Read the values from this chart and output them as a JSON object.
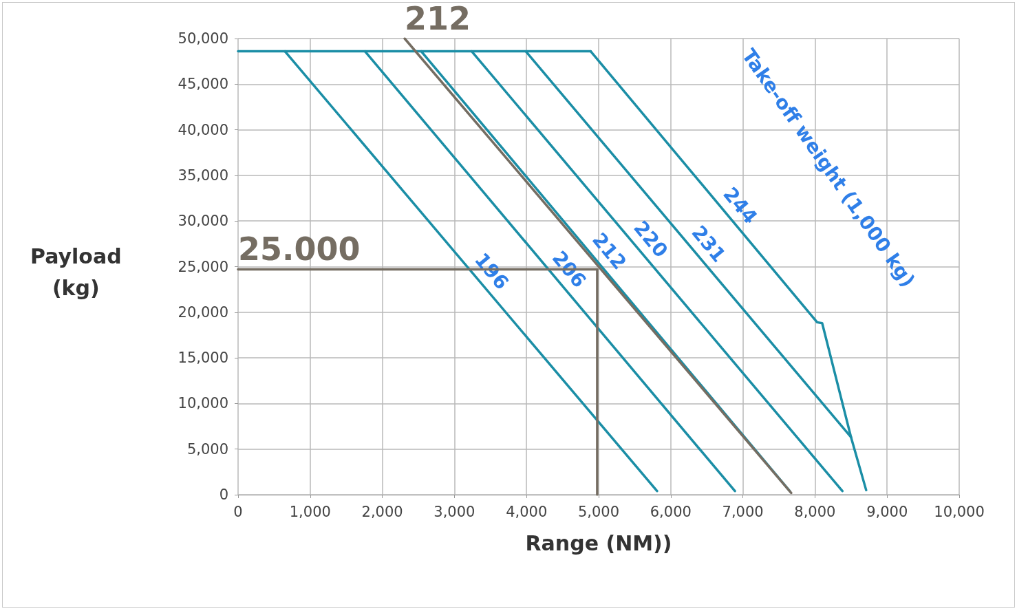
{
  "chart_data": {
    "type": "line",
    "xlabel": "Range (NM))",
    "ylabel": "Payload\n(kg)",
    "xlim": [
      0,
      10000
    ],
    "ylim": [
      0,
      50000
    ],
    "xticks": [
      0,
      {
        "value": 1000,
        "label": "1,000"
      },
      {
        "value": 2000,
        "label": "2,000"
      },
      {
        "value": 3000,
        "label": "3,000"
      },
      {
        "value": 4000,
        "label": "4,000"
      },
      {
        "value": 5000,
        "label": "5,000"
      },
      {
        "value": 6000,
        "label": "6,000"
      },
      {
        "value": 7000,
        "label": "7,000"
      },
      {
        "value": 8000,
        "label": "8,000"
      },
      {
        "value": 9000,
        "label": "9,000"
      },
      {
        "value": 10000,
        "label": "10,000"
      }
    ],
    "yticks": [
      0,
      {
        "value": 5000,
        "label": "5,000"
      },
      {
        "value": 10000,
        "label": "10,000"
      },
      {
        "value": 15000,
        "label": "15,000"
      },
      {
        "value": 20000,
        "label": "20,000"
      },
      {
        "value": 25000,
        "label": "25,000"
      },
      {
        "value": 30000,
        "label": "30,000"
      },
      {
        "value": 35000,
        "label": "35,000"
      },
      {
        "value": 40000,
        "label": "40,000"
      },
      {
        "value": 45000,
        "label": "45,000"
      },
      {
        "value": 50000,
        "label": "50,000"
      }
    ],
    "grid": true,
    "legend": false,
    "marker": "none",
    "line_style": "solid",
    "series": [
      {
        "color": "#1b8ea6",
        "x": [
          0,
          4890
        ],
        "values": [
          48600,
          48600
        ]
      },
      {
        "color": "#1b8ea6",
        "x": [
          650,
          5810
        ],
        "values": [
          48600,
          400
        ]
      },
      {
        "color": "#1b8ea6",
        "x": [
          1760,
          6890
        ],
        "values": [
          48600,
          400
        ]
      },
      {
        "color": "#1b8ea6",
        "x": [
          2540,
          7650
        ],
        "values": [
          48600,
          400
        ]
      },
      {
        "color": "#1b8ea6",
        "x": [
          3240,
          8380
        ],
        "values": [
          48600,
          400
        ]
      },
      {
        "color": "#1b8ea6",
        "x": [
          3990,
          8500,
          8710
        ],
        "values": [
          48600,
          6300,
          500
        ]
      },
      {
        "color": "#1b8ea6",
        "x": [
          4890,
          8030,
          8100,
          8500
        ],
        "values": [
          48600,
          18900,
          18800,
          6300
        ]
      },
      {
        "name": "212",
        "color": "#756d62",
        "x": [
          2310,
          7670
        ],
        "values": [
          50000,
          200
        ]
      },
      {
        "name": "25.000",
        "color": "#756d62",
        "x": [
          0,
          4980
        ],
        "values": [
          24700,
          24700
        ]
      },
      {
        "color": "#756d62",
        "x": [
          4980,
          4980
        ],
        "values": [
          24700,
          0
        ]
      }
    ],
    "annotations": [
      {
        "text": "196",
        "x": 3230,
        "y": 24500
      },
      {
        "text": "206",
        "x": 4304,
        "y": 24700
      },
      {
        "text": "212",
        "x": 4862,
        "y": 26700
      },
      {
        "text": "220",
        "x": 5437,
        "y": 28000
      },
      {
        "text": "231",
        "x": 6240,
        "y": 27500
      },
      {
        "text": "244",
        "x": 6677,
        "y": 31700
      },
      "Take-off weight (1,000 kg)"
    ]
  }
}
